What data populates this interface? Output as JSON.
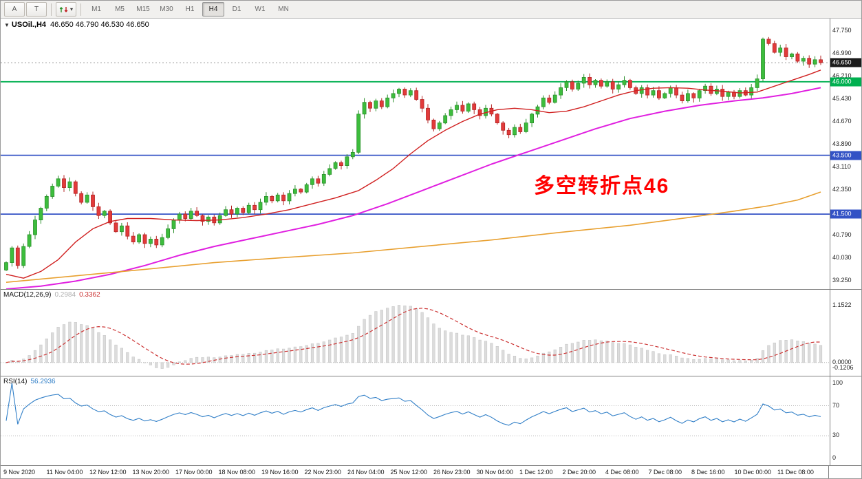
{
  "toolbar": {
    "buttons": [
      {
        "id": "cursor",
        "label": "A"
      },
      {
        "id": "text",
        "label": "T"
      }
    ],
    "chart_mode_button": {
      "caret": "▾"
    },
    "timeframes": [
      "M1",
      "M5",
      "M15",
      "M30",
      "H1",
      "H4",
      "D1",
      "W1",
      "MN"
    ],
    "active_timeframe": "H4"
  },
  "chart": {
    "symbol_label": "USOil.,H4",
    "ohlc_values": "46.650 46.790 46.530 46.650",
    "collapse_icon": "▼",
    "annotation": {
      "text": "多空转折点46",
      "color": "#ff0000"
    },
    "price_ticks": [
      "47.750",
      "46.990",
      "46.210",
      "45.430",
      "44.670",
      "43.890",
      "43.110",
      "42.350",
      "41.570",
      "40.790",
      "40.030",
      "39.250"
    ],
    "badges": [
      {
        "name": "current-price-badge",
        "value": "46.650",
        "bg": "#1b1b1b",
        "fg": "#ffffff"
      },
      {
        "name": "hline-badge-46000",
        "value": "46.000",
        "bg": "#00b050",
        "fg": "#ffffff"
      },
      {
        "name": "hline-badge-43500",
        "value": "43.500",
        "bg": "#3352c5",
        "fg": "#ffffff"
      },
      {
        "name": "hline-badge-41500",
        "value": "41.500",
        "bg": "#3352c5",
        "fg": "#ffffff"
      }
    ],
    "hlines": [
      {
        "price": 46.0,
        "color": "#00b050"
      },
      {
        "price": 43.5,
        "color": "#3352c5"
      },
      {
        "price": 41.5,
        "color": "#3352c5"
      }
    ],
    "current_price": 46.65
  },
  "chart_data": {
    "type": "candlestick",
    "symbol": "USOil",
    "timeframe": "H4",
    "price_range_visible": [
      38.95,
      48.15
    ],
    "first_open": 39.6,
    "closes": [
      39.85,
      40.35,
      39.75,
      40.4,
      40.8,
      41.3,
      41.7,
      42.1,
      42.45,
      42.7,
      42.4,
      42.6,
      42.2,
      41.9,
      42.15,
      41.75,
      41.45,
      41.6,
      41.2,
      40.9,
      41.1,
      40.75,
      40.55,
      40.8,
      40.5,
      40.65,
      40.45,
      40.7,
      41.0,
      41.3,
      41.5,
      41.35,
      41.6,
      41.45,
      41.25,
      41.4,
      41.2,
      41.45,
      41.65,
      41.5,
      41.7,
      41.55,
      41.8,
      41.65,
      41.9,
      42.1,
      41.95,
      42.15,
      41.95,
      42.2,
      42.35,
      42.25,
      42.5,
      42.7,
      42.55,
      42.85,
      43.05,
      43.25,
      43.15,
      43.45,
      43.6,
      44.9,
      45.3,
      45.1,
      45.35,
      45.15,
      45.45,
      45.6,
      45.75,
      45.55,
      45.7,
      45.4,
      45.1,
      44.7,
      44.4,
      44.6,
      44.85,
      45.05,
      45.2,
      45.0,
      45.25,
      45.05,
      44.85,
      45.1,
      44.9,
      44.6,
      44.35,
      44.2,
      44.45,
      44.3,
      44.6,
      44.9,
      45.15,
      45.45,
      45.3,
      45.55,
      45.8,
      46.0,
      45.75,
      45.95,
      46.15,
      45.9,
      46.05,
      45.85,
      46.0,
      45.75,
      45.9,
      46.05,
      45.8,
      45.6,
      45.8,
      45.55,
      45.7,
      45.45,
      45.6,
      45.8,
      45.55,
      45.35,
      45.6,
      45.45,
      45.7,
      45.85,
      45.6,
      45.75,
      45.5,
      45.65,
      45.5,
      45.7,
      45.55,
      45.8,
      46.1,
      47.45,
      47.3,
      47.0,
      47.15,
      46.85,
      46.95,
      46.7,
      46.8,
      46.6,
      46.75,
      46.65
    ],
    "up_color": "#3dbd3d",
    "up_stroke": "#2a8f2a",
    "down_color": "#e23b3b",
    "down_stroke": "#b32424",
    "ma_lines": [
      {
        "name": "ma-fast-red-line",
        "color": "#d02020",
        "width": 1.4,
        "points": [
          [
            0,
            39.45
          ],
          [
            3,
            39.32
          ],
          [
            6,
            39.55
          ],
          [
            9,
            39.95
          ],
          [
            12,
            40.55
          ],
          [
            15,
            41.0
          ],
          [
            18,
            41.25
          ],
          [
            21,
            41.35
          ],
          [
            25,
            41.35
          ],
          [
            29,
            41.3
          ],
          [
            33,
            41.28
          ],
          [
            37,
            41.3
          ],
          [
            41,
            41.38
          ],
          [
            45,
            41.5
          ],
          [
            49,
            41.65
          ],
          [
            53,
            41.85
          ],
          [
            57,
            42.05
          ],
          [
            61,
            42.3
          ],
          [
            64,
            42.65
          ],
          [
            67,
            43.05
          ],
          [
            70,
            43.55
          ],
          [
            73,
            44.0
          ],
          [
            76,
            44.35
          ],
          [
            79,
            44.65
          ],
          [
            82,
            44.9
          ],
          [
            85,
            45.05
          ],
          [
            88,
            45.1
          ],
          [
            91,
            45.05
          ],
          [
            94,
            44.95
          ],
          [
            97,
            45.0
          ],
          [
            100,
            45.15
          ],
          [
            103,
            45.35
          ],
          [
            106,
            45.55
          ],
          [
            109,
            45.7
          ],
          [
            112,
            45.78
          ],
          [
            115,
            45.8
          ],
          [
            118,
            45.78
          ],
          [
            121,
            45.72
          ],
          [
            124,
            45.68
          ],
          [
            127,
            45.62
          ],
          [
            130,
            45.65
          ],
          [
            133,
            45.85
          ],
          [
            136,
            46.05
          ],
          [
            139,
            46.25
          ],
          [
            141,
            46.4
          ]
        ]
      },
      {
        "name": "ma-mid-magenta-line",
        "color": "#e020e0",
        "width": 2,
        "points": [
          [
            0,
            38.95
          ],
          [
            6,
            39.05
          ],
          [
            12,
            39.22
          ],
          [
            18,
            39.45
          ],
          [
            24,
            39.75
          ],
          [
            30,
            40.1
          ],
          [
            36,
            40.4
          ],
          [
            42,
            40.65
          ],
          [
            48,
            40.9
          ],
          [
            54,
            41.15
          ],
          [
            60,
            41.45
          ],
          [
            66,
            41.85
          ],
          [
            72,
            42.3
          ],
          [
            78,
            42.75
          ],
          [
            84,
            43.2
          ],
          [
            90,
            43.6
          ],
          [
            96,
            44.0
          ],
          [
            102,
            44.4
          ],
          [
            108,
            44.75
          ],
          [
            114,
            45.0
          ],
          [
            120,
            45.2
          ],
          [
            126,
            45.35
          ],
          [
            131,
            45.45
          ],
          [
            136,
            45.6
          ],
          [
            141,
            45.8
          ]
        ]
      },
      {
        "name": "ma-slow-orange-line",
        "color": "#e8a030",
        "width": 1.6,
        "points": [
          [
            0,
            39.18
          ],
          [
            12,
            39.4
          ],
          [
            24,
            39.62
          ],
          [
            36,
            39.85
          ],
          [
            48,
            40.02
          ],
          [
            60,
            40.18
          ],
          [
            72,
            40.4
          ],
          [
            84,
            40.62
          ],
          [
            96,
            40.88
          ],
          [
            108,
            41.12
          ],
          [
            118,
            41.38
          ],
          [
            126,
            41.6
          ],
          [
            132,
            41.78
          ],
          [
            137,
            41.98
          ],
          [
            141,
            42.25
          ]
        ]
      }
    ]
  },
  "macd": {
    "label": "MACD(12,26,9)",
    "value_main": "0.2984",
    "value_signal": "0.3362",
    "main_value_color": "#b0b0b0",
    "signal_value_color": "#cc3333",
    "ticks": [
      "1.1522",
      "0.0000",
      "-0.1206"
    ],
    "hist_color": "#dcdcdc",
    "hist_stroke": "#c6c6c6",
    "signal_color": "#cc3333",
    "params": {
      "fast": 12,
      "slow": 26,
      "signal": 9
    },
    "scale_max": 1.1522,
    "scale_min": -0.1206
  },
  "rsi": {
    "label": "RSI(14)",
    "value": "56.2936",
    "value_color": "#2f7ec7",
    "ticks": [
      "100",
      "70",
      "30",
      "0"
    ],
    "levels": [
      70,
      30
    ],
    "line_color": "#2f7ec7",
    "period": 14
  },
  "time_axis": {
    "labels": [
      "9 Nov 2020",
      "11 Nov 04:00",
      "12 Nov 12:00",
      "13 Nov 20:00",
      "17 Nov 00:00",
      "18 Nov 08:00",
      "19 Nov 16:00",
      "22 Nov 23:00",
      "24 Nov 04:00",
      "25 Nov 12:00",
      "26 Nov 23:00",
      "30 Nov 04:00",
      "1 Dec 12:00",
      "2 Dec 20:00",
      "4 Dec 08:00",
      "7 Dec 08:00",
      "8 Dec 16:00",
      "10 Dec 00:00",
      "11 Dec 08:00"
    ]
  }
}
